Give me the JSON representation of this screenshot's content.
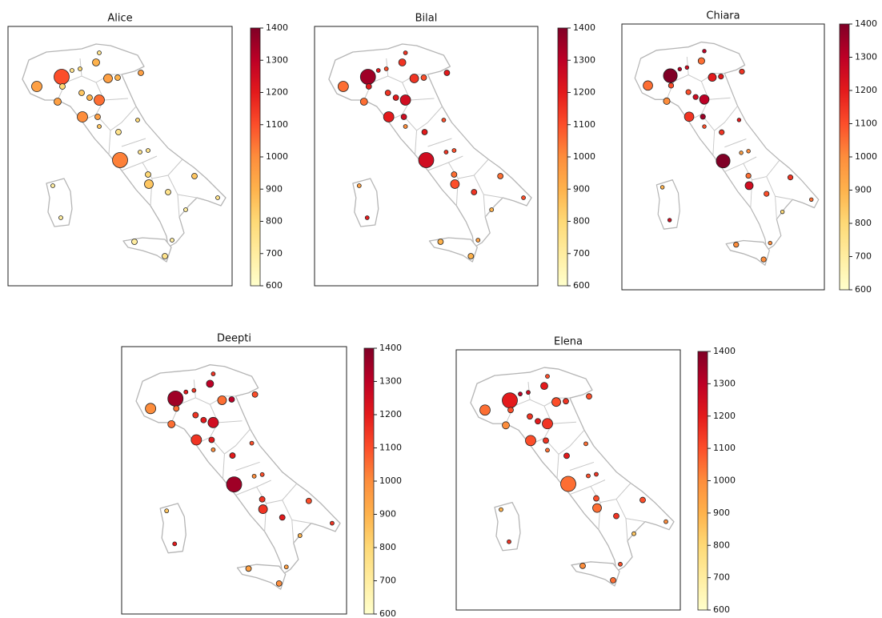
{
  "chart_data": [
    {
      "type": "bubble-map",
      "title": "Alice",
      "values": [
        950,
        1100,
        800,
        750,
        800,
        900,
        750,
        950,
        900,
        950,
        850,
        900,
        1050,
        950,
        1000,
        950,
        850,
        750,
        800,
        1020,
        750,
        750,
        800,
        850,
        750,
        850,
        750,
        700,
        700,
        700,
        700,
        700,
        750
      ],
      "clim": [
        600,
        1400
      ],
      "cticks": [
        600,
        700,
        800,
        900,
        1000,
        1100,
        1200,
        1300,
        1400
      ],
      "colormap": [
        "#ffffcc",
        "#ffeda0",
        "#fed976",
        "#feb24c",
        "#fd8d3c",
        "#fc4e2a",
        "#e31a1c",
        "#bd0026",
        "#800026"
      ]
    },
    {
      "type": "bubble-map",
      "title": "Bilal",
      "values": [
        1050,
        1350,
        1200,
        1200,
        1100,
        1150,
        1150,
        1150,
        1100,
        1200,
        1150,
        1200,
        1250,
        1050,
        1200,
        1250,
        1000,
        1200,
        1100,
        1250,
        1150,
        1100,
        1050,
        1100,
        1150,
        1050,
        1100,
        900,
        950,
        1200,
        900,
        950,
        900
      ],
      "clim": [
        600,
        1400
      ],
      "cticks": [
        600,
        700,
        800,
        900,
        1000,
        1100,
        1200,
        1300,
        1400
      ],
      "colormap": [
        "#ffffcc",
        "#ffeda0",
        "#fed976",
        "#feb24c",
        "#fd8d3c",
        "#fc4e2a",
        "#e31a1c",
        "#bd0026",
        "#800026"
      ]
    },
    {
      "type": "bubble-map",
      "title": "Chiara",
      "values": [
        1050,
        1400,
        1100,
        1300,
        1250,
        1050,
        1300,
        1200,
        1200,
        1150,
        1100,
        1250,
        1300,
        1000,
        1150,
        1350,
        1100,
        1150,
        1200,
        1400,
        950,
        1000,
        1050,
        1250,
        1100,
        1150,
        1050,
        800,
        900,
        1250,
        1000,
        1000,
        1000
      ],
      "clim": [
        600,
        1400
      ],
      "cticks": [
        600,
        700,
        800,
        900,
        1000,
        1100,
        1200,
        1300,
        1400
      ],
      "colormap": [
        "#ffffcc",
        "#ffeda0",
        "#fed976",
        "#feb24c",
        "#fd8d3c",
        "#fc4e2a",
        "#e31a1c",
        "#bd0026",
        "#800026"
      ]
    },
    {
      "type": "bubble-map",
      "title": "Deepti",
      "values": [
        1000,
        1350,
        1050,
        1200,
        1150,
        1300,
        1150,
        1050,
        1300,
        1100,
        1150,
        1200,
        1250,
        1050,
        1150,
        1200,
        1000,
        1200,
        1100,
        1350,
        1000,
        1100,
        1150,
        1150,
        1200,
        1100,
        1150,
        900,
        850,
        1200,
        950,
        950,
        1000
      ],
      "clim": [
        600,
        1400
      ],
      "cticks": [
        600,
        700,
        800,
        900,
        1000,
        1100,
        1200,
        1300,
        1400
      ],
      "colormap": [
        "#ffffcc",
        "#ffeda0",
        "#fed976",
        "#feb24c",
        "#fd8d3c",
        "#fc4e2a",
        "#e31a1c",
        "#bd0026",
        "#800026"
      ]
    },
    {
      "type": "bubble-map",
      "title": "Elena",
      "values": [
        1050,
        1200,
        1100,
        1300,
        1250,
        1200,
        1100,
        1100,
        1150,
        1100,
        1150,
        1200,
        1150,
        1000,
        1100,
        1150,
        1050,
        1200,
        1050,
        1050,
        1100,
        1150,
        1100,
        1050,
        1150,
        1100,
        1000,
        850,
        900,
        1150,
        1000,
        1100,
        1050
      ],
      "clim": [
        600,
        1400
      ],
      "cticks": [
        600,
        700,
        800,
        900,
        1000,
        1100,
        1200,
        1300,
        1400
      ],
      "colormap": [
        "#ffffcc",
        "#ffeda0",
        "#fed976",
        "#feb24c",
        "#fd8d3c",
        "#fc4e2a",
        "#e31a1c",
        "#bd0026",
        "#800026"
      ]
    }
  ]
}
